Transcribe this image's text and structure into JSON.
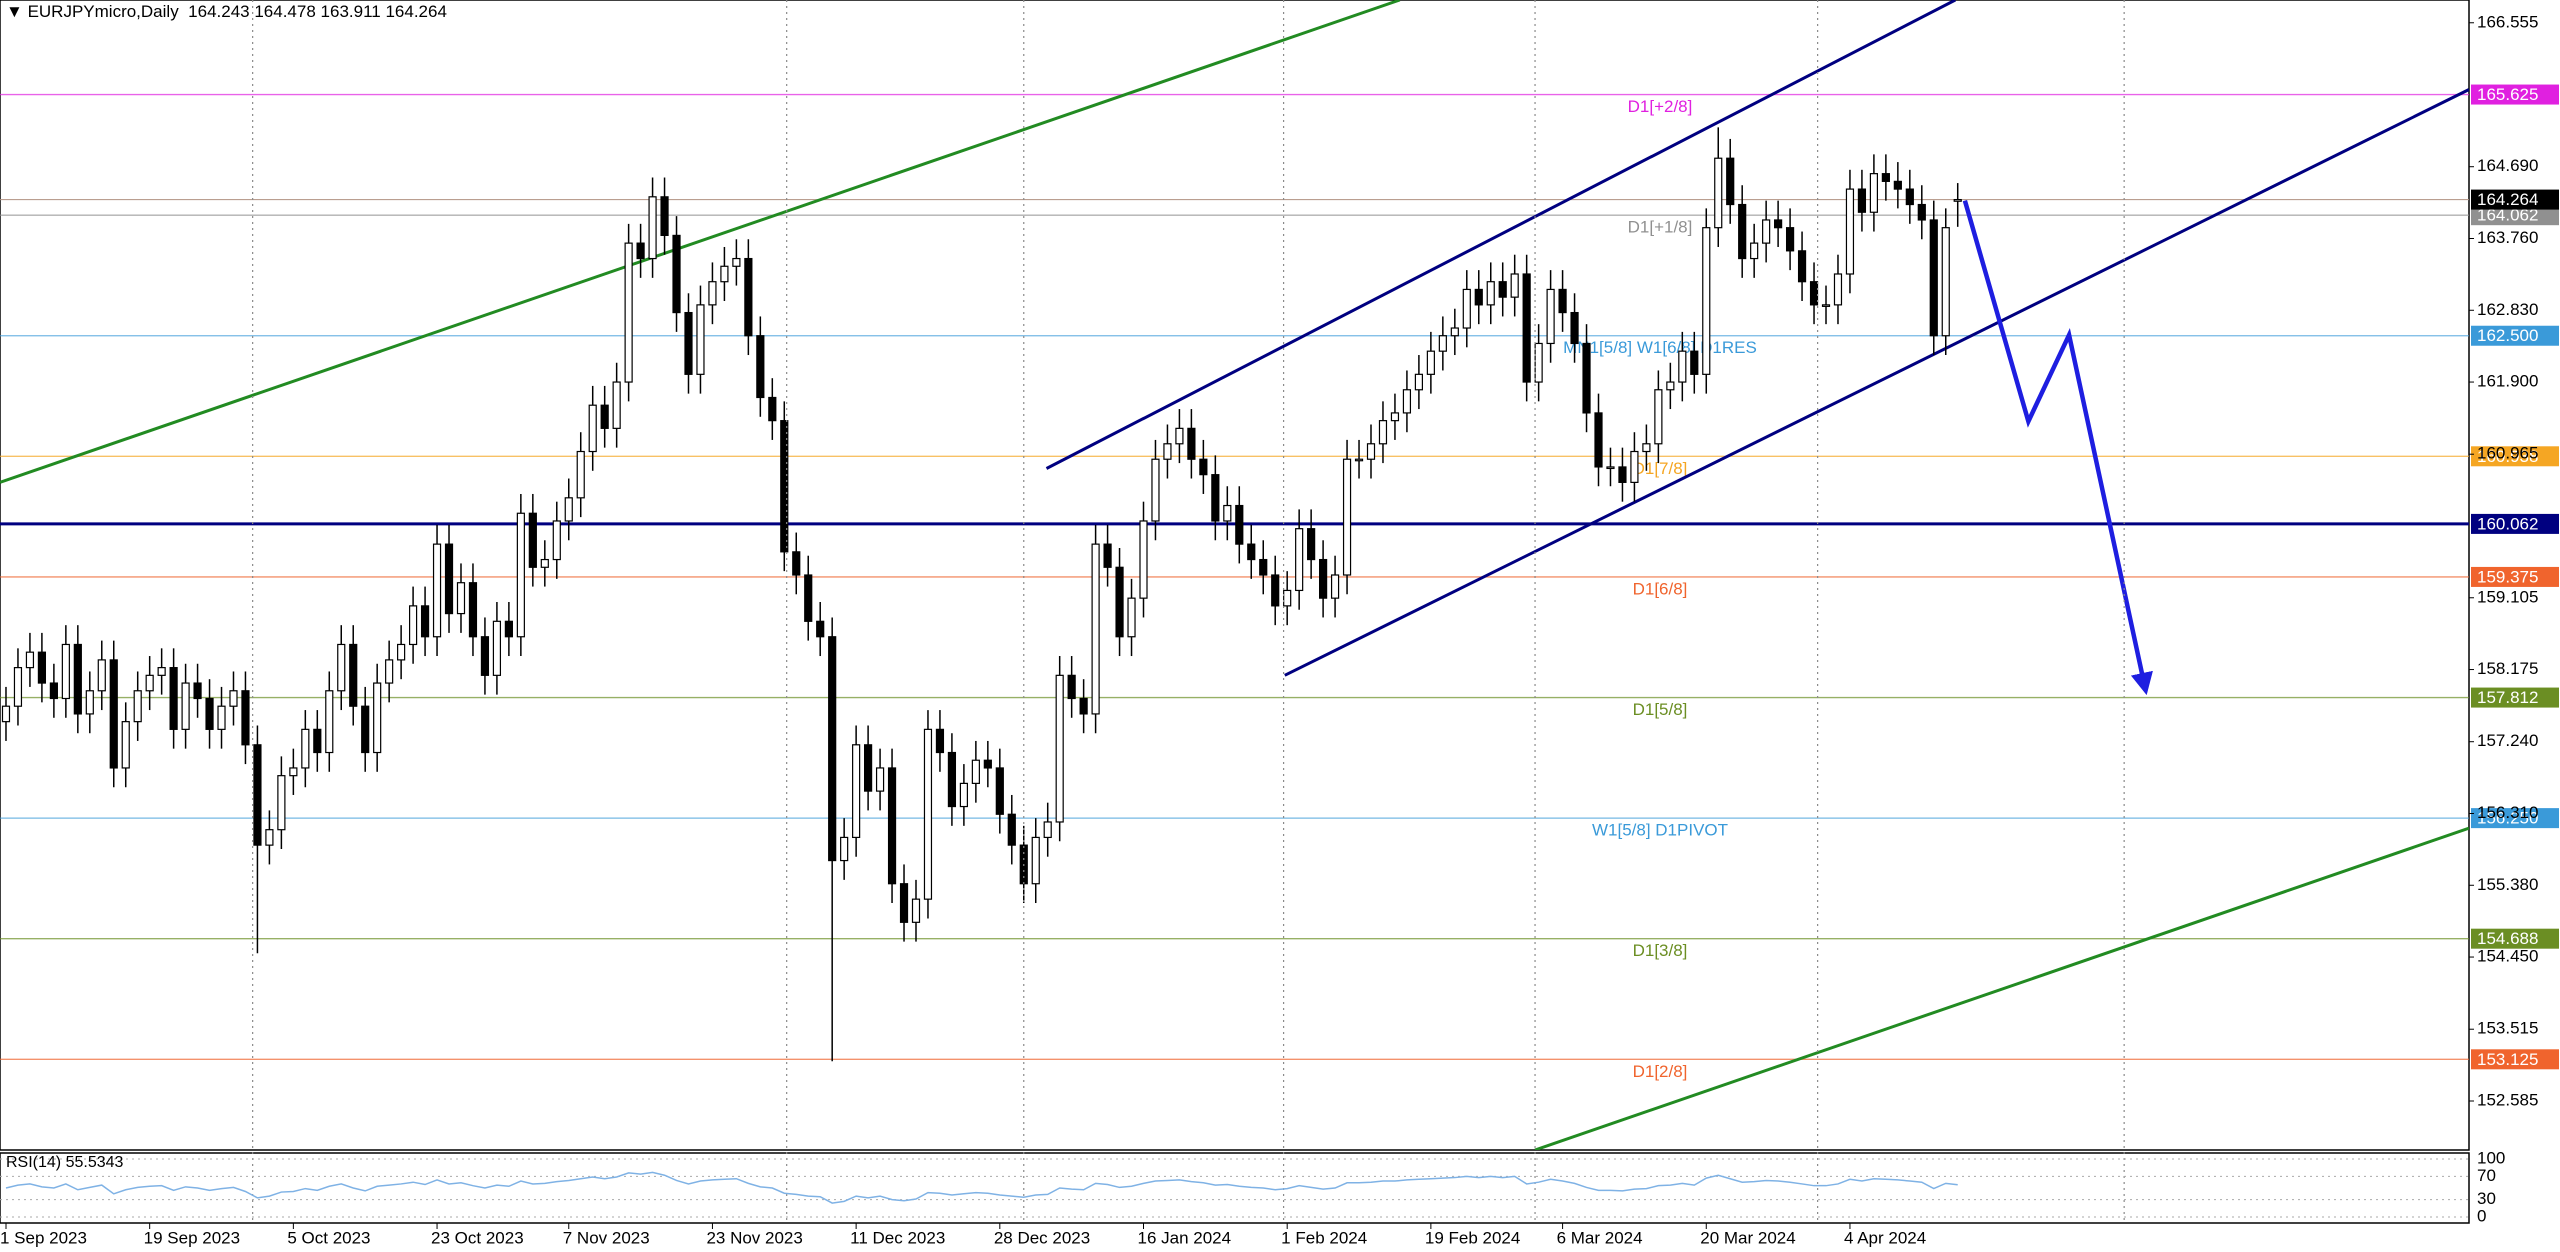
{
  "chart_data": {
    "type": "candlestick",
    "title": "EURJPYmicro,Daily",
    "open": [
      157.5,
      157.7,
      158.2,
      158.4,
      158.0,
      157.8,
      158.5,
      157.6,
      157.9,
      158.3,
      156.9,
      157.5,
      157.9,
      158.1,
      158.2,
      157.4,
      158.0,
      157.8,
      157.4,
      157.7,
      157.9,
      157.2,
      155.9,
      156.1,
      156.8,
      156.9,
      157.4,
      157.1,
      157.9,
      158.5,
      157.7,
      157.1,
      158.0,
      158.3,
      158.5,
      159.0,
      158.6,
      159.8,
      158.9,
      159.3,
      158.6,
      158.1,
      158.8,
      158.6,
      160.2,
      159.5,
      159.6,
      160.1,
      160.4,
      161.0,
      161.6,
      161.3,
      161.9,
      163.7,
      163.5,
      164.3,
      163.8,
      162.8,
      162.0,
      162.9,
      163.2,
      163.4,
      163.5,
      162.5,
      161.7,
      161.4,
      159.7,
      159.4,
      158.8,
      158.6,
      155.7,
      156.0,
      157.2,
      156.6,
      156.9,
      155.4,
      154.9,
      155.2,
      157.4,
      157.1,
      156.4,
      156.7,
      157.0,
      156.9,
      156.3,
      155.9,
      155.4,
      156.0,
      156.2,
      158.1,
      157.8,
      157.6,
      159.8,
      159.5,
      158.6,
      159.1,
      160.1,
      160.9,
      161.1,
      161.3,
      160.9,
      160.7,
      160.1,
      160.3,
      159.8,
      159.6,
      159.4,
      159.0,
      159.2,
      160.0,
      159.6,
      159.1,
      159.4,
      160.9,
      160.9,
      161.1,
      161.4,
      161.5,
      161.8,
      162.0,
      162.3,
      162.5,
      162.6,
      163.1,
      162.9,
      163.2,
      163.0,
      163.3,
      161.9,
      162.4,
      163.1,
      162.8,
      162.4,
      161.5,
      160.8,
      160.8,
      160.6,
      161.0,
      161.1,
      161.8,
      161.9,
      162.3,
      162.0,
      163.9,
      164.8,
      164.2,
      163.5,
      163.7,
      164.0,
      163.9,
      163.6,
      163.2,
      162.9,
      162.9,
      163.3,
      164.4,
      164.1,
      164.6,
      164.5,
      164.4,
      164.2,
      164.0,
      162.5,
      164.243
    ],
    "high": [
      157.95,
      158.45,
      158.65,
      158.65,
      158.25,
      158.75,
      158.75,
      158.15,
      158.55,
      158.55,
      157.75,
      158.15,
      158.35,
      158.45,
      158.45,
      158.25,
      158.25,
      158.05,
      157.95,
      158.15,
      158.15,
      157.45,
      156.35,
      157.05,
      157.15,
      157.65,
      157.65,
      158.15,
      158.75,
      158.75,
      157.95,
      158.25,
      158.55,
      158.75,
      159.25,
      159.25,
      160.05,
      160.05,
      159.55,
      159.55,
      158.85,
      159.05,
      159.05,
      160.45,
      160.45,
      159.85,
      160.35,
      160.65,
      161.25,
      161.85,
      161.85,
      162.15,
      163.95,
      163.95,
      164.55,
      164.55,
      164.05,
      163.05,
      163.15,
      163.45,
      163.65,
      163.75,
      163.75,
      162.75,
      161.95,
      161.65,
      159.95,
      159.65,
      159.05,
      158.85,
      156.25,
      157.45,
      157.45,
      157.15,
      157.15,
      155.65,
      155.45,
      157.65,
      157.65,
      157.35,
      156.95,
      157.25,
      157.25,
      157.15,
      156.55,
      156.15,
      156.25,
      156.45,
      158.35,
      158.35,
      158.05,
      160.05,
      160.05,
      159.75,
      159.35,
      160.35,
      161.15,
      161.35,
      161.55,
      161.55,
      161.15,
      160.95,
      160.55,
      160.55,
      160.05,
      159.85,
      159.65,
      159.45,
      160.25,
      160.25,
      159.85,
      159.65,
      161.15,
      161.15,
      161.35,
      161.65,
      161.75,
      162.05,
      162.25,
      162.55,
      162.75,
      162.85,
      163.35,
      163.35,
      163.45,
      163.45,
      163.55,
      163.55,
      162.65,
      163.35,
      163.35,
      163.05,
      162.65,
      161.75,
      161.05,
      161.05,
      161.25,
      161.35,
      162.05,
      162.15,
      162.55,
      162.55,
      164.15,
      165.2,
      165.05,
      164.45,
      163.95,
      164.25,
      164.25,
      164.15,
      163.85,
      163.45,
      163.15,
      163.55,
      164.65,
      164.65,
      164.85,
      164.85,
      164.75,
      164.65,
      164.45,
      164.25,
      164.15,
      164.478
    ],
    "low": [
      157.25,
      157.45,
      157.95,
      157.75,
      157.55,
      157.55,
      157.35,
      157.35,
      157.65,
      156.65,
      156.65,
      157.25,
      157.65,
      157.85,
      157.15,
      157.15,
      157.55,
      157.15,
      157.15,
      157.45,
      156.95,
      154.5,
      155.65,
      155.85,
      156.55,
      156.65,
      156.85,
      156.85,
      157.65,
      157.45,
      156.85,
      156.85,
      157.75,
      158.05,
      158.25,
      158.35,
      158.35,
      158.65,
      158.65,
      158.35,
      157.85,
      157.85,
      158.35,
      158.35,
      159.25,
      159.25,
      159.35,
      159.85,
      160.15,
      160.75,
      161.05,
      161.05,
      161.65,
      163.25,
      163.25,
      163.55,
      162.55,
      161.75,
      161.75,
      162.65,
      162.95,
      163.15,
      162.25,
      161.45,
      161.15,
      159.45,
      159.15,
      158.55,
      158.35,
      153.1,
      155.45,
      155.75,
      156.35,
      156.35,
      155.15,
      154.65,
      154.65,
      154.95,
      156.85,
      156.15,
      156.15,
      156.45,
      156.65,
      156.05,
      155.65,
      155.15,
      155.15,
      155.75,
      155.95,
      157.55,
      157.35,
      157.35,
      159.25,
      158.35,
      158.35,
      158.85,
      159.85,
      160.65,
      160.85,
      160.65,
      160.45,
      159.85,
      159.85,
      159.55,
      159.35,
      159.15,
      158.75,
      158.75,
      158.95,
      159.35,
      158.85,
      158.85,
      159.15,
      160.65,
      160.65,
      160.85,
      161.15,
      161.25,
      161.55,
      161.75,
      162.05,
      162.25,
      162.35,
      162.65,
      162.65,
      162.75,
      162.75,
      161.65,
      161.65,
      162.15,
      162.55,
      162.15,
      161.25,
      160.55,
      160.55,
      160.35,
      160.35,
      160.75,
      160.85,
      161.55,
      161.65,
      161.75,
      161.75,
      163.65,
      163.95,
      163.25,
      163.25,
      163.45,
      163.65,
      163.35,
      162.95,
      162.65,
      162.65,
      162.65,
      163.05,
      163.85,
      163.85,
      164.25,
      164.15,
      163.95,
      163.75,
      162.25,
      162.25,
      163.911
    ],
    "close": [
      157.7,
      158.2,
      158.4,
      158.0,
      157.8,
      158.5,
      157.6,
      157.9,
      158.3,
      156.9,
      157.5,
      157.9,
      158.1,
      158.2,
      157.4,
      158.0,
      157.8,
      157.4,
      157.7,
      157.9,
      157.2,
      155.9,
      156.1,
      156.8,
      156.9,
      157.4,
      157.1,
      157.9,
      158.5,
      157.7,
      157.1,
      158.0,
      158.3,
      158.5,
      159.0,
      158.6,
      159.8,
      158.9,
      159.3,
      158.6,
      158.1,
      158.8,
      158.6,
      160.2,
      159.5,
      159.6,
      160.1,
      160.4,
      161.0,
      161.6,
      161.3,
      161.9,
      163.7,
      163.5,
      164.3,
      163.8,
      162.8,
      162.0,
      162.9,
      163.2,
      163.4,
      163.5,
      162.5,
      161.7,
      161.4,
      159.7,
      159.4,
      158.8,
      158.6,
      155.7,
      156.0,
      157.2,
      156.6,
      156.9,
      155.4,
      154.9,
      155.2,
      157.4,
      157.1,
      156.4,
      156.7,
      157.0,
      156.9,
      156.3,
      155.9,
      155.4,
      156.0,
      156.2,
      158.1,
      157.8,
      157.6,
      159.8,
      159.5,
      158.6,
      159.1,
      160.1,
      160.9,
      161.1,
      161.3,
      160.9,
      160.7,
      160.1,
      160.3,
      159.8,
      159.6,
      159.4,
      159.0,
      159.2,
      160.0,
      159.6,
      159.1,
      159.4,
      160.9,
      160.9,
      161.1,
      161.4,
      161.5,
      161.8,
      162.0,
      162.3,
      162.5,
      162.6,
      163.1,
      162.9,
      163.2,
      163.0,
      163.3,
      161.9,
      162.4,
      163.1,
      162.8,
      162.4,
      161.5,
      160.8,
      160.8,
      160.6,
      161.0,
      161.1,
      161.8,
      161.9,
      162.3,
      162.0,
      163.9,
      164.8,
      164.2,
      163.5,
      163.7,
      164.0,
      163.9,
      163.6,
      163.2,
      162.9,
      162.9,
      163.3,
      164.4,
      164.1,
      164.6,
      164.5,
      164.4,
      164.2,
      164.0,
      162.5,
      163.9,
      164.264
    ],
    "up_color": "#ffffff",
    "down_color": "#000000",
    "last_price_color": "#000000",
    "xlim": [
      -0.5,
      205.7
    ],
    "xticks": [
      {
        "value": 0,
        "label": "1 Sep 2023"
      },
      {
        "value": 12,
        "label": "19 Sep 2023"
      },
      {
        "value": 24,
        "label": "5 Oct 2023"
      },
      {
        "value": 36,
        "label": "23 Oct 2023"
      },
      {
        "value": 47,
        "label": "7 Nov 2023"
      },
      {
        "value": 59,
        "label": "23 Nov 2023"
      },
      {
        "value": 71,
        "label": "11 Dec 2023"
      },
      {
        "value": 83,
        "label": "28 Dec 2023"
      },
      {
        "value": 95,
        "label": "16 Jan 2024"
      },
      {
        "value": 107,
        "label": "1 Feb 2024"
      },
      {
        "value": 119,
        "label": "19 Feb 2024"
      },
      {
        "value": 130,
        "label": "6 Mar 2024"
      },
      {
        "value": 142,
        "label": "20 Mar 2024"
      },
      {
        "value": 154,
        "label": "4 Apr 2024"
      }
    ],
    "xgrid": [
      20.6,
      65.2,
      85,
      106.7,
      127.7,
      151.3,
      176.9
    ],
    "ylim": [
      151.95,
      166.85
    ],
    "yticks": [
      166.555,
      {
        "value": 164.69,
        "label": "164.690"
      },
      {
        "value": 163.76,
        "label": "163.760"
      },
      {
        "value": 162.83,
        "label": "162.830"
      },
      {
        "value": 161.9,
        "label": "161.900"
      },
      160.965,
      159.105,
      158.175,
      {
        "value": 157.24,
        "label": "157.240"
      },
      {
        "value": 156.31,
        "label": "156.310"
      },
      {
        "value": 155.38,
        "label": "155.380"
      },
      {
        "value": 154.45,
        "label": "154.450"
      },
      153.515,
      152.585
    ],
    "levels": [
      {
        "name": "D1[+2/8]",
        "value": 165.625,
        "color": "#e020e0"
      },
      {
        "name": "D1[+1/8]",
        "value": 164.062,
        "color": "#909090"
      },
      {
        "name": "MN1[5/8] W1[6/8] D1RES",
        "value": 162.5,
        "value_label": "162.500",
        "color": "#3a9ad9"
      },
      {
        "name": "D1[7/8]",
        "value": 160.938,
        "color": "#f5a623"
      },
      {
        "value": 160.062,
        "color": "#000080",
        "width": 3
      },
      {
        "name": "D1[6/8]",
        "value": 159.375,
        "color": "#f0642d"
      },
      {
        "name": "D1[5/8]",
        "value": 157.812,
        "color": "#6b8e23"
      },
      {
        "name": "W1[5/8] D1PIVOT",
        "value": 156.25,
        "value_label": "156.250",
        "color": "#3a9ad9"
      },
      {
        "name": "D1[3/8]",
        "value": 154.688,
        "color": "#6b8e23"
      },
      {
        "name": "D1[2/8]",
        "value": 153.125,
        "color": "#f0642d"
      }
    ],
    "trendlines": [
      {
        "color": "#228b22",
        "points": [
          [
            -0.5,
            160.6
          ],
          [
            116.4,
            166.85
          ]
        ]
      },
      {
        "color": "#000080",
        "points": [
          [
            86.9,
            160.78
          ],
          [
            162.8,
            166.85
          ]
        ]
      },
      {
        "color": "#000080",
        "points": [
          [
            106.8,
            158.1
          ],
          [
            205.7,
            165.69
          ]
        ]
      },
      {
        "color": "#228b22",
        "points": [
          [
            127.7,
            151.95
          ],
          [
            205.7,
            156.12
          ]
        ]
      }
    ],
    "arrow": {
      "color": "#1e1ee0",
      "points": [
        [
          163.6,
          164.25
        ],
        [
          168.9,
          161.39
        ],
        [
          172.3,
          162.51
        ],
        [
          178.7,
          157.9
        ]
      ]
    },
    "indicator": {
      "type": "line",
      "title": "RSI(14)",
      "color": "#7fb2e5",
      "values": [
        50,
        55,
        57,
        52,
        50,
        57,
        47,
        51,
        55,
        40,
        47,
        51,
        53,
        54,
        46,
        52,
        50,
        46,
        49,
        51,
        44,
        33,
        36,
        43,
        44,
        49,
        46,
        53,
        57,
        50,
        45,
        53,
        55,
        57,
        60,
        56,
        64,
        57,
        59,
        54,
        50,
        55,
        53,
        62,
        57,
        58,
        61,
        63,
        66,
        69,
        66,
        69,
        76,
        74,
        77,
        72,
        63,
        57,
        62,
        64,
        65,
        66,
        58,
        52,
        50,
        41,
        39,
        36,
        35,
        24,
        27,
        36,
        33,
        36,
        30,
        28,
        31,
        42,
        41,
        38,
        40,
        42,
        41,
        38,
        36,
        34,
        38,
        39,
        50,
        48,
        47,
        58,
        56,
        51,
        53,
        58,
        62,
        63,
        64,
        61,
        59,
        55,
        56,
        53,
        51,
        50,
        47,
        49,
        54,
        51,
        48,
        50,
        59,
        59,
        60,
        62,
        62,
        64,
        65,
        66,
        67,
        68,
        70,
        68,
        70,
        68,
        70,
        57,
        60,
        65,
        62,
        58,
        51,
        46,
        46,
        45,
        48,
        49,
        54,
        55,
        58,
        55,
        67,
        72,
        66,
        60,
        61,
        63,
        62,
        60,
        57,
        54,
        54,
        57,
        65,
        62,
        66,
        65,
        64,
        62,
        60,
        49,
        58,
        55.5343
      ],
      "ylim": [
        0,
        100
      ],
      "yticks": [
        100,
        70,
        30,
        0
      ]
    }
  }
}
